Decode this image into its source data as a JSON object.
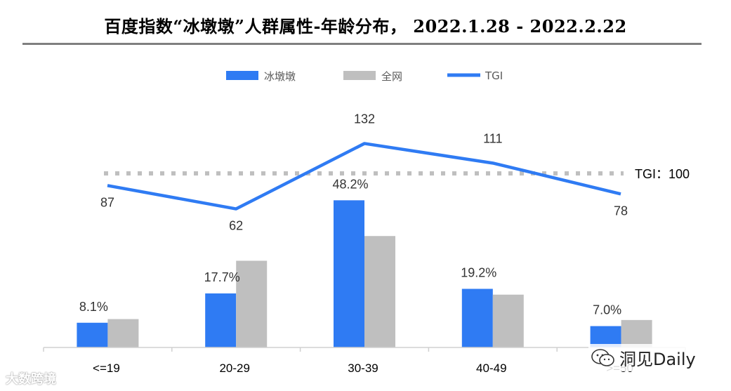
{
  "title": "百度指数“冰墩墩”人群属性-年龄分布， 2022.1.28 - 2022.2.22",
  "watermarks": {
    "left": "大数跨境",
    "right": "洞见Daily",
    "right_icon": "wechat-icon"
  },
  "colors": {
    "series1": "#2f7bf3",
    "series2": "#bfbfbf",
    "tgi_line": "#2f7bf3",
    "ref_line": "#bfbfbf",
    "axis": "#d0d0d0"
  },
  "chart_data": {
    "type": "bar",
    "categories": [
      "<=19",
      "20-29",
      "30-39",
      "40-49",
      ">=50"
    ],
    "series": [
      {
        "name": "冰墩墩",
        "values": [
          8.1,
          17.7,
          48.2,
          19.2,
          7.0
        ],
        "value_labels": [
          "8.1%",
          "17.7%",
          "48.2%",
          "19.2%",
          "7.0%"
        ]
      },
      {
        "name": "全网",
        "values": [
          9.3,
          28.4,
          36.5,
          17.3,
          9.0
        ]
      }
    ],
    "line_series": {
      "name": "TGI",
      "values": [
        87,
        62,
        132,
        111,
        78
      ],
      "labels": [
        "87",
        "62",
        "132",
        "111",
        "78"
      ]
    },
    "reference_line": {
      "value": 100,
      "label": "TGI：100"
    },
    "bar_ylim": [
      0,
      60
    ],
    "line_ylim": [
      0,
      170
    ],
    "legend": {
      "position": "top",
      "items": [
        "冰墩墩",
        "全网",
        "TGI"
      ]
    },
    "grid": false
  }
}
